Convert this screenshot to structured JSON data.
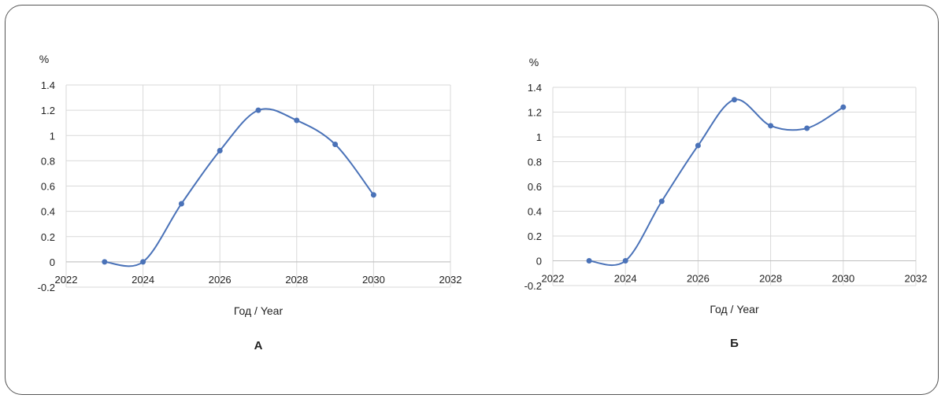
{
  "chart_data": [
    {
      "type": "line",
      "panel_label": "А",
      "ylabel": "%",
      "xlabel": "Год / Year",
      "x": [
        2023,
        2024,
        2025,
        2026,
        2027,
        2028,
        2029,
        2030
      ],
      "series": [
        {
          "values": [
            0,
            0,
            0.46,
            0.88,
            1.2,
            1.12,
            0.93,
            0.53
          ]
        }
      ],
      "xlim": [
        2022,
        2032
      ],
      "ylim": [
        -0.2,
        1.4
      ],
      "xticks": [
        "2022",
        "2024",
        "2026",
        "2028",
        "2030",
        "2032"
      ],
      "yticks": [
        "-0.2",
        "0",
        "0.2",
        "0.4",
        "0.6",
        "0.8",
        "1",
        "1.2",
        "1.4"
      ],
      "grid": true,
      "smooth": true,
      "markers": true,
      "color": "#4a72b8"
    },
    {
      "type": "line",
      "panel_label": "Б",
      "ylabel": "%",
      "xlabel": "Год / Year",
      "x": [
        2023,
        2024,
        2025,
        2026,
        2027,
        2028,
        2029,
        2030
      ],
      "series": [
        {
          "values": [
            0,
            0,
            0.48,
            0.93,
            1.3,
            1.09,
            1.07,
            1.24
          ]
        }
      ],
      "xlim": [
        2022,
        2032
      ],
      "ylim": [
        -0.2,
        1.4
      ],
      "xticks": [
        "2022",
        "2024",
        "2026",
        "2028",
        "2030",
        "2032"
      ],
      "yticks": [
        "-0.2",
        "0",
        "0.2",
        "0.4",
        "0.6",
        "0.8",
        "1",
        "1.2",
        "1.4"
      ],
      "grid": true,
      "smooth": true,
      "markers": true,
      "color": "#4a72b8"
    }
  ]
}
